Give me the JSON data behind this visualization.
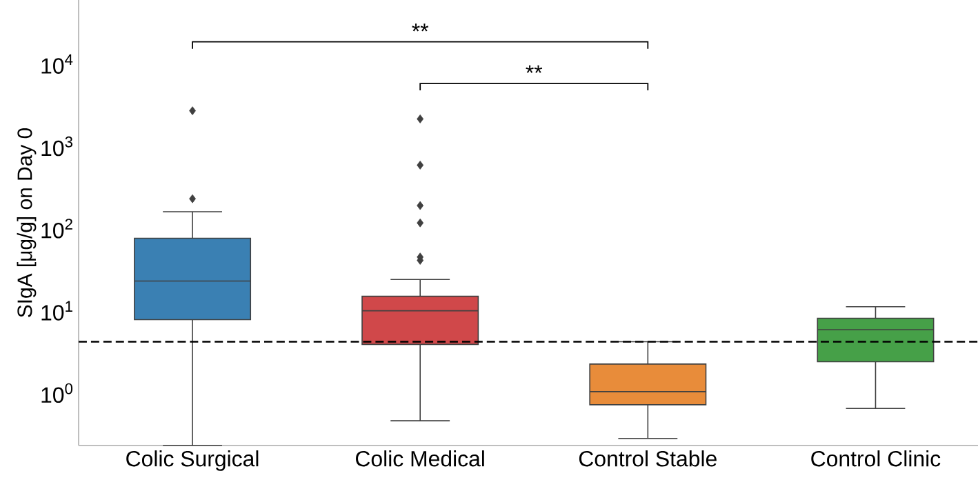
{
  "chart_data": {
    "type": "box",
    "ylabel": "SIgA [μg/g] on Day 0",
    "categories": [
      "Colic Surgical",
      "Colic Medical",
      "Control Stable",
      "Control Clinic"
    ],
    "colors": [
      "#3a80b3",
      "#d0484a",
      "#e88c3a",
      "#46a048"
    ],
    "boxes": [
      {
        "low": 0.23,
        "q1": 7.8,
        "median": 23,
        "q3": 76,
        "high": 160,
        "outliers": [
          230,
          2700
        ]
      },
      {
        "low": 0.46,
        "q1": 3.9,
        "median": 10,
        "q3": 15,
        "high": 24,
        "outliers": [
          41,
          45,
          117,
          190,
          590,
          2150
        ]
      },
      {
        "low": 0.28,
        "q1": 0.72,
        "median": 1.04,
        "q3": 2.25,
        "high": 4.2
      },
      {
        "low": 0.65,
        "q1": 2.4,
        "median": 5.9,
        "q3": 8.1,
        "high": 11.2
      }
    ],
    "log": "y",
    "ylim": [
      0.23,
      60000
    ],
    "yticks": [
      {
        "value": 1,
        "label": "10$^{0}$"
      },
      {
        "value": 10,
        "label": "10$^{1}$"
      },
      {
        "value": 100,
        "label": "10$^{2}$"
      },
      {
        "value": 1000,
        "label": "10$^{3}$"
      },
      {
        "value": 10000,
        "label": "10$^{4}$"
      }
    ],
    "ref_lines": [
      {
        "axis": "y",
        "value": 4.2,
        "color": "#000000",
        "line_style": "dashed"
      }
    ],
    "annotations": [
      "**",
      "**"
    ],
    "grid": false
  }
}
